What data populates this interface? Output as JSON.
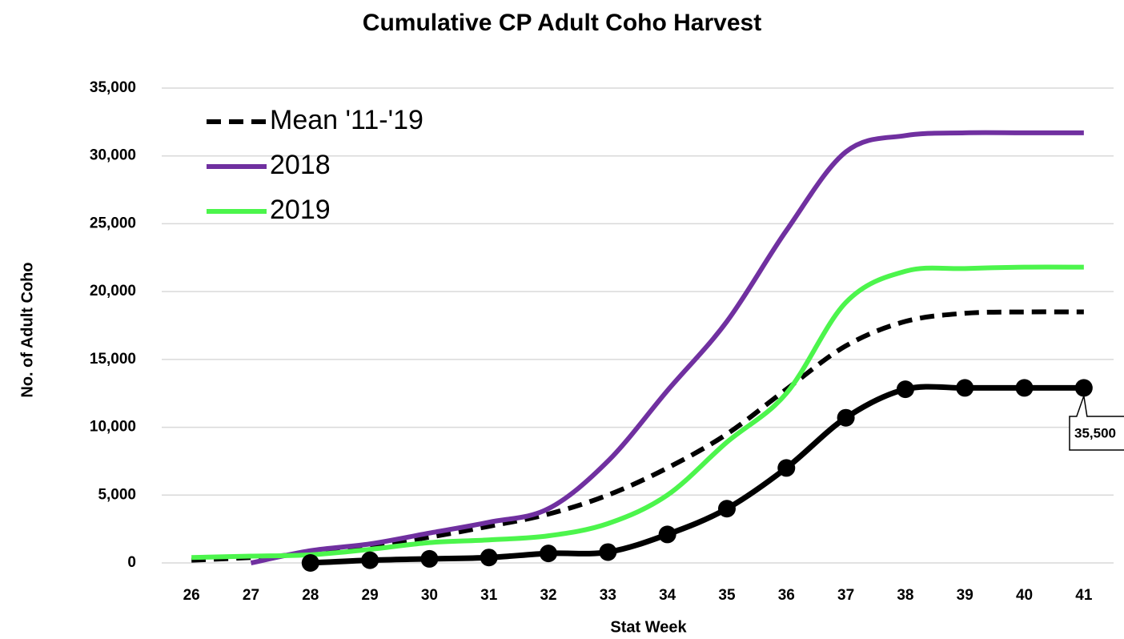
{
  "chart_data": {
    "type": "line",
    "title": "Cumulative CP Adult Coho Harvest",
    "x_label": "Stat Week",
    "y_label": "No. of Adult Coho",
    "categories": [
      "26",
      "27",
      "28",
      "29",
      "30",
      "31",
      "32",
      "33",
      "34",
      "35",
      "36",
      "37",
      "38",
      "39",
      "40",
      "41"
    ],
    "series": [
      {
        "name": "Mean '11-'19",
        "color": "#000000",
        "dash": true,
        "values": [
          200,
          400,
          700,
          1200,
          1900,
          2700,
          3600,
          5000,
          7000,
          9500,
          12800,
          16000,
          17800,
          18400,
          18500,
          18500
        ]
      },
      {
        "name": "2018",
        "color": "#7030a0",
        "values": [
          null,
          0,
          900,
          1400,
          2200,
          3000,
          4000,
          7500,
          12700,
          17800,
          24500,
          30300,
          31500,
          31700,
          31700,
          31700
        ]
      },
      {
        "name": "2019",
        "color": "#4cf54c",
        "values": [
          400,
          500,
          600,
          1000,
          1500,
          1700,
          2000,
          2900,
          5000,
          8900,
          12500,
          19200,
          21500,
          21700,
          21800,
          21800
        ]
      },
      {
        "color": "#000000",
        "markers": true,
        "values": [
          null,
          null,
          0,
          200,
          300,
          400,
          700,
          800,
          2100,
          4000,
          7000,
          10700,
          12800,
          12900,
          12900,
          12900
        ]
      }
    ],
    "ylim": [
      0,
      35000
    ],
    "yticks": [
      0,
      {
        "value": 5000,
        "label": "5,000"
      },
      {
        "value": 10000,
        "label": "10,000"
      },
      {
        "value": 15000,
        "label": "15,000"
      },
      {
        "value": 20000,
        "label": "20,000"
      },
      {
        "value": 25000,
        "label": "25,000"
      },
      {
        "value": 30000,
        "label": "30,000"
      },
      {
        "value": 35000,
        "label": "35,000"
      }
    ],
    "grid": true,
    "legend": "upper left",
    "annotation": "35,500"
  }
}
